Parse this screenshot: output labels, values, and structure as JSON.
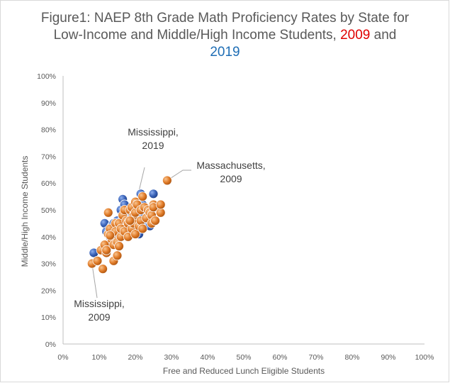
{
  "chart_data": {
    "type": "scatter",
    "title": {
      "line1": "Figure1: NAEP 8th Grade Math Proficiency Rates by State for",
      "line2_prefix": "Low-Income and Middle/High Income Students,",
      "year_a": "2009",
      "and": "and",
      "year_b": "2019"
    },
    "xlabel": "Free and Reduced Lunch Eligible Students",
    "ylabel": "Middle/High Income Students",
    "xlim": [
      0,
      100
    ],
    "ylim": [
      0,
      100
    ],
    "x_ticks": [
      "0%",
      "10%",
      "20%",
      "30%",
      "40%",
      "50%",
      "60%",
      "70%",
      "80%",
      "90%",
      "100%"
    ],
    "y_ticks": [
      "0%",
      "10%",
      "20%",
      "30%",
      "40%",
      "50%",
      "60%",
      "70%",
      "80%",
      "90%",
      "100%"
    ],
    "grid": false,
    "colors": {
      "series_2019": "#3a63b8",
      "series_2009": "#e07b28",
      "year_2009_text": "#e00000",
      "year_2019_text": "#1f6eb5"
    },
    "series": [
      {
        "key": "2019",
        "color": "#3a63b8",
        "points": [
          [
            8.5,
            34
          ],
          [
            11.5,
            45
          ],
          [
            12,
            42
          ],
          [
            13,
            40
          ],
          [
            13.5,
            44
          ],
          [
            14,
            37
          ],
          [
            14.5,
            39
          ],
          [
            15,
            38
          ],
          [
            15,
            46
          ],
          [
            15.5,
            44
          ],
          [
            16,
            50
          ],
          [
            16.5,
            47
          ],
          [
            16.5,
            54
          ],
          [
            17,
            52
          ],
          [
            17,
            43
          ],
          [
            17.5,
            48
          ],
          [
            18,
            45
          ],
          [
            18.5,
            41
          ],
          [
            19,
            49
          ],
          [
            19,
            44
          ],
          [
            19.5,
            47
          ],
          [
            20,
            42
          ],
          [
            20,
            50
          ],
          [
            20.5,
            45
          ],
          [
            21,
            48
          ],
          [
            21,
            41
          ],
          [
            21.5,
            56
          ],
          [
            22,
            52
          ],
          [
            22,
            46
          ],
          [
            22.5,
            49
          ],
          [
            23,
            44
          ],
          [
            23.5,
            47
          ],
          [
            24,
            44
          ],
          [
            24.5,
            47
          ],
          [
            25,
            56
          ],
          [
            15.5,
            41
          ],
          [
            14,
            45
          ],
          [
            18,
            43
          ],
          [
            16,
            41
          ],
          [
            20,
            47
          ]
        ]
      },
      {
        "key": "2009",
        "color": "#e07b28",
        "points": [
          [
            8,
            30
          ],
          [
            9.5,
            31
          ],
          [
            10.5,
            35
          ],
          [
            11,
            28
          ],
          [
            11.5,
            37
          ],
          [
            12,
            34
          ],
          [
            12,
            35
          ],
          [
            12.5,
            41
          ],
          [
            12.5,
            49
          ],
          [
            13,
            43
          ],
          [
            13.5,
            39
          ],
          [
            14,
            37
          ],
          [
            14,
            31
          ],
          [
            14.5,
            45
          ],
          [
            14.5,
            42
          ],
          [
            15,
            38
          ],
          [
            15,
            33
          ],
          [
            15.5,
            45
          ],
          [
            16,
            40
          ],
          [
            16,
            43
          ],
          [
            16.5,
            48
          ],
          [
            17,
            42
          ],
          [
            17,
            50
          ],
          [
            17.5,
            46
          ],
          [
            18,
            40
          ],
          [
            18,
            45
          ],
          [
            18.5,
            50
          ],
          [
            19,
            43
          ],
          [
            19,
            51
          ],
          [
            19.5,
            48
          ],
          [
            19.5,
            45
          ],
          [
            20,
            41
          ],
          [
            20,
            49
          ],
          [
            20,
            53
          ],
          [
            20.5,
            52
          ],
          [
            21,
            44
          ],
          [
            21.5,
            46
          ],
          [
            21.5,
            50
          ],
          [
            22,
            55
          ],
          [
            22,
            43
          ],
          [
            22.5,
            51
          ],
          [
            23,
            47
          ],
          [
            23.5,
            50
          ],
          [
            24,
            49
          ],
          [
            24.5,
            48
          ],
          [
            24.5,
            45
          ],
          [
            25,
            52
          ],
          [
            25,
            51
          ],
          [
            25.5,
            46
          ],
          [
            27,
            49
          ],
          [
            27,
            52
          ],
          [
            28.8,
            61
          ],
          [
            18.5,
            46
          ],
          [
            13,
            40.5
          ],
          [
            15.5,
            36.5
          ]
        ]
      }
    ],
    "annotations": [
      {
        "lines": [
          "Mississippi,",
          "2019"
        ],
        "point": [
          18.5,
          43
        ]
      },
      {
        "lines": [
          "Massachusetts,",
          "2009"
        ],
        "point": [
          28.8,
          61
        ]
      },
      {
        "lines": [
          "Mississippi,",
          "2009"
        ],
        "point": [
          8,
          30
        ]
      }
    ]
  }
}
